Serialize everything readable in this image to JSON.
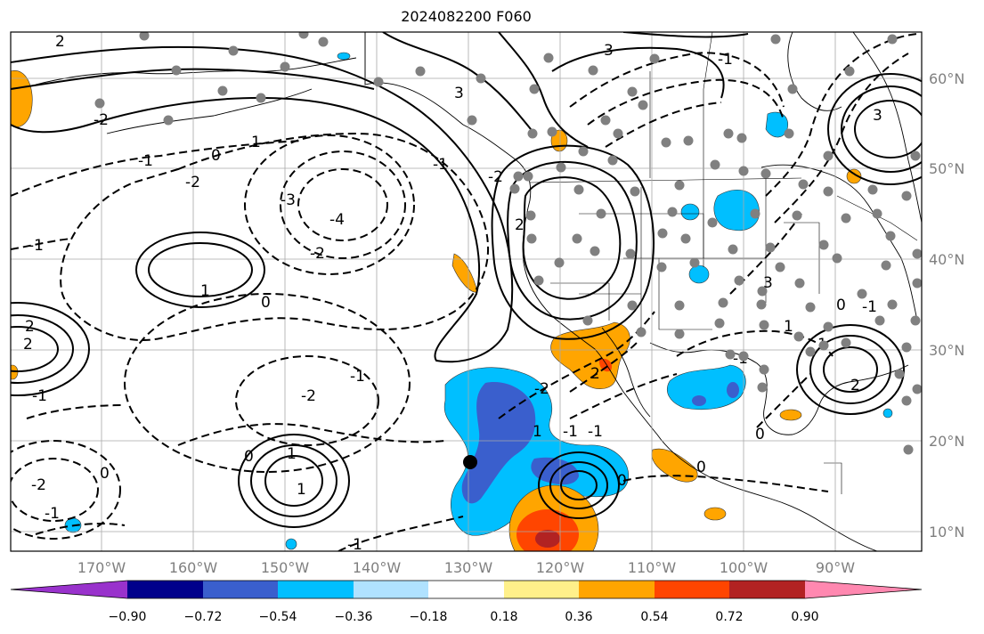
{
  "title": "2024082200 F060",
  "map": {
    "lon_range": [
      "180°W",
      "80°W"
    ],
    "lat_range": [
      "8°N",
      "65°N"
    ],
    "lon_ticks": [
      "170°W",
      "160°W",
      "150°W",
      "140°W",
      "130°W",
      "120°W",
      "110°W",
      "100°W",
      "90°W"
    ],
    "lat_ticks": [
      "60°N",
      "50°N",
      "40°N",
      "30°N",
      "20°N",
      "10°N"
    ],
    "gridlines": true,
    "coastlines": true,
    "political_boundaries": true,
    "station_markers": "gray dots",
    "contour_style": "solid = positive, dashed = negative",
    "contour_labels": [
      "2",
      "-2",
      "0",
      "3",
      "-1",
      "1",
      "-3",
      "-4",
      "-2",
      "1",
      "0",
      "2",
      "2",
      "-1",
      "-2",
      "-1",
      "1",
      "0",
      "1",
      "-1",
      "-2",
      "2",
      "0",
      "-1",
      "3",
      "3",
      "-1",
      "-2",
      "2",
      "-1",
      "3",
      "0",
      "-1",
      "1",
      "-1",
      "-2",
      "-1",
      "1",
      "2",
      "1",
      "0",
      "-1",
      "0",
      "-1",
      "0",
      "-2"
    ]
  },
  "colorbar": {
    "ticks": [
      "−0.90",
      "−0.72",
      "−0.54",
      "−0.36",
      "−0.18",
      "0.18",
      "0.36",
      "0.54",
      "0.72",
      "0.90"
    ],
    "colors": [
      "#9932cc",
      "#00008b",
      "#3a5fcd",
      "#00bfff",
      "#b0e2ff",
      "#ffffff",
      "#fff08a",
      "#ffa500",
      "#ff4500",
      "#b22222",
      "#ff88b0"
    ],
    "extend": "both"
  }
}
